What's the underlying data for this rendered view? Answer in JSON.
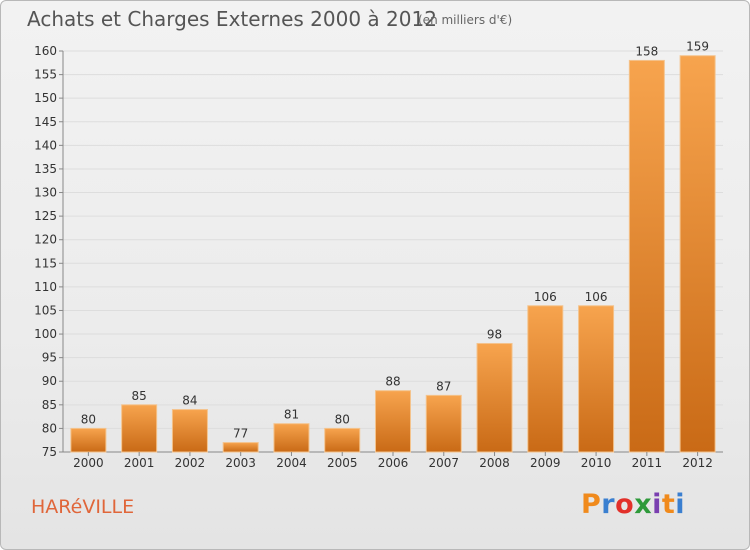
{
  "header": {
    "title": "Achats et Charges Externes 2000 à 2012",
    "subtitle": "(en milliers d'€)"
  },
  "commune": "HARéVILLE",
  "logo": {
    "text": "Proxiti",
    "letters": [
      "P",
      "r",
      "o",
      "x",
      "i",
      "t",
      "i"
    ],
    "letter_colors": [
      "#f08a1c",
      "#3a7fd0",
      "#e2302a",
      "#2e9a3a",
      "#7a3fb0",
      "#f08a1c",
      "#3a7fd0"
    ]
  },
  "colors": {
    "bar_light": "#f7a44e",
    "bar_dark": "#c96a16",
    "grid": "#dddddd",
    "axis": "#888888"
  },
  "chart_data": {
    "type": "bar",
    "categories": [
      "2000",
      "2001",
      "2002",
      "2003",
      "2004",
      "2005",
      "2006",
      "2007",
      "2008",
      "2009",
      "2010",
      "2011",
      "2012"
    ],
    "values": [
      80,
      85,
      84,
      77,
      81,
      80,
      88,
      87,
      98,
      106,
      106,
      158,
      159
    ],
    "value_labels": [
      "80",
      "85",
      "84",
      "77",
      "81",
      "80",
      "88",
      "87",
      "98",
      "106",
      "106",
      "158",
      "159"
    ],
    "ylim": [
      75,
      160
    ],
    "yticks": [
      75,
      80,
      85,
      90,
      95,
      100,
      105,
      110,
      115,
      120,
      125,
      130,
      135,
      140,
      145,
      150,
      155,
      160
    ],
    "grid": true
  }
}
